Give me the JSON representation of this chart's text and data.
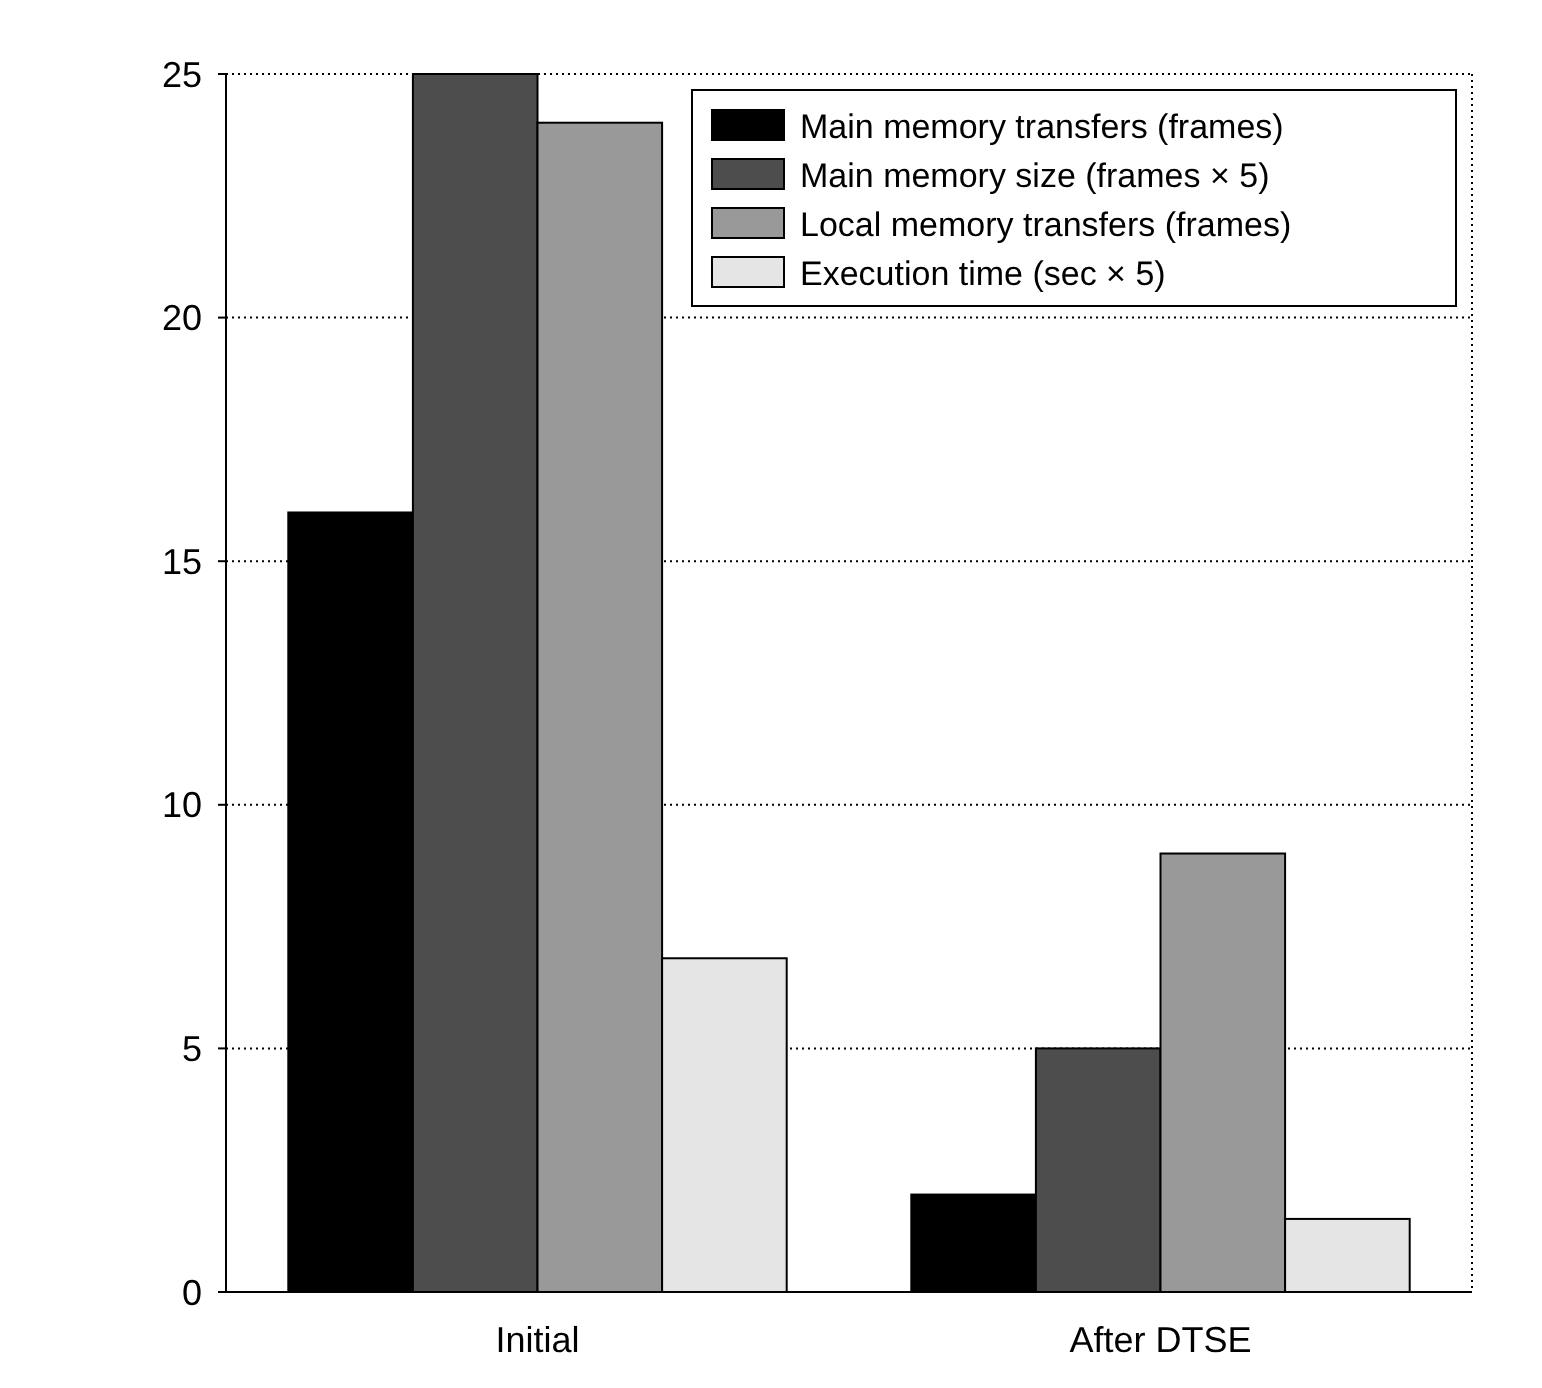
{
  "chart_data": {
    "type": "bar",
    "categories": [
      "Initial",
      "After DTSE"
    ],
    "series": [
      {
        "name": "Main memory transfers (frames)",
        "color": "#000000",
        "values": [
          16,
          2
        ]
      },
      {
        "name": "Main memory size (frames × 5)",
        "color": "#4d4d4d",
        "values": [
          25,
          5
        ]
      },
      {
        "name": "Local memory transfers (frames)",
        "color": "#999999",
        "values": [
          24,
          9
        ]
      },
      {
        "name": "Execution time (sec × 5)",
        "color": "#e5e5e5",
        "values": [
          6.85,
          1.5
        ]
      }
    ],
    "ylim": [
      0,
      25
    ],
    "yticks": [
      0,
      5,
      10,
      15,
      20,
      25
    ],
    "grid": "y",
    "legend": "top right"
  }
}
